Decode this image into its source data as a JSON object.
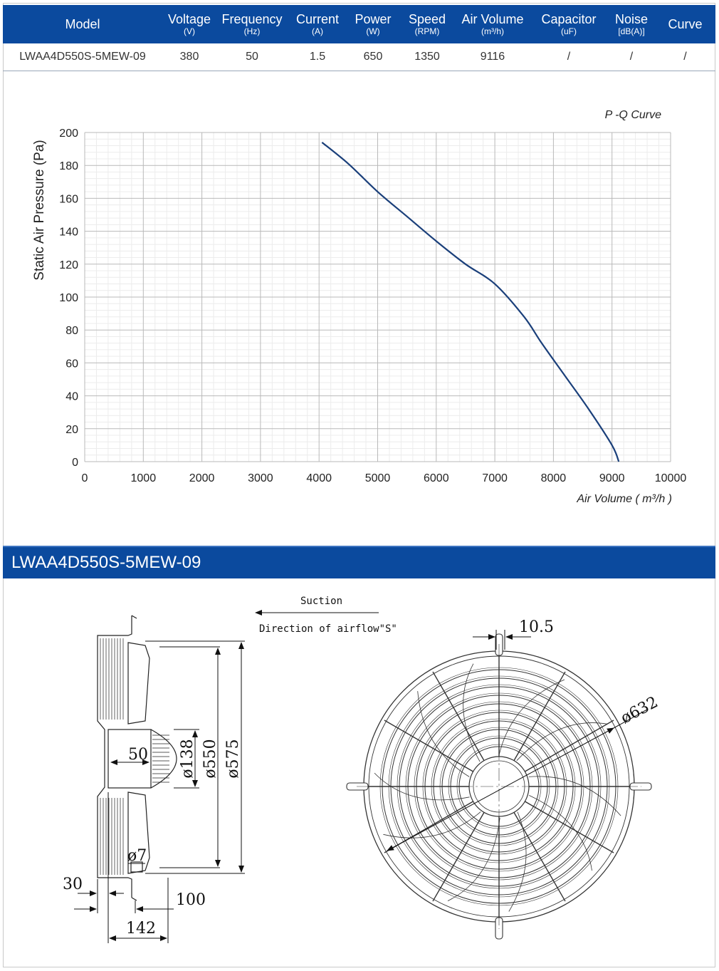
{
  "spec_table": {
    "headers": [
      {
        "label": "Model",
        "unit": ""
      },
      {
        "label": "Voltage",
        "unit": "(V)"
      },
      {
        "label": "Frequency",
        "unit": "(Hz)"
      },
      {
        "label": "Current",
        "unit": "(A)"
      },
      {
        "label": "Power",
        "unit": "(W)"
      },
      {
        "label": "Speed",
        "unit": "(RPM)"
      },
      {
        "label": "Air Volume",
        "unit": "(m³/h)"
      },
      {
        "label": "Capacitor",
        "unit": "(uF)"
      },
      {
        "label": "Noise",
        "unit": "[dB(A)]"
      },
      {
        "label": "Curve",
        "unit": ""
      }
    ],
    "row": [
      "LWAA4D550S-5MEW-09",
      "380",
      "50",
      "1.5",
      "650",
      "1350",
      "9116",
      "/",
      "/",
      "/"
    ]
  },
  "chart_data": {
    "type": "line",
    "title": "P -Q Curve",
    "xlabel": "Air Volume ( m³/h )",
    "ylabel": "Static Air Pressure  (Pa)",
    "xlim": [
      0,
      10000
    ],
    "ylim": [
      0,
      200
    ],
    "x_ticks": [
      "0",
      "1000",
      "2000",
      "3000",
      "4000",
      "5000",
      "6000",
      "7000",
      "8000",
      "9000",
      "10000"
    ],
    "y_ticks": [
      "0",
      "20",
      "40",
      "60",
      "80",
      "100",
      "120",
      "140",
      "160",
      "180",
      "200"
    ],
    "grid": true,
    "line_color": "#1a3f7a",
    "series": [
      {
        "x": [
          4050,
          4500,
          5000,
          5500,
          6000,
          6500,
          7000,
          7500,
          7800,
          8200,
          8600,
          9000,
          9116
        ],
        "y": [
          194,
          181,
          164,
          149,
          134,
          120,
          108,
          88,
          72,
          52,
          32,
          10,
          0
        ]
      }
    ]
  },
  "model_band": {
    "title": "LWAA4D550S-5MEW-09"
  },
  "drawing": {
    "suction_label": "Suction",
    "airflow_label": "Direction of airflow\"S\"",
    "dims": {
      "d50": "50",
      "d138": "ø138",
      "d550": "ø550",
      "d575": "ø575",
      "d7": "ø7",
      "d30": "30",
      "d100": "100",
      "d142": "142",
      "d10_5": "10.5",
      "d632": "ø632"
    }
  }
}
